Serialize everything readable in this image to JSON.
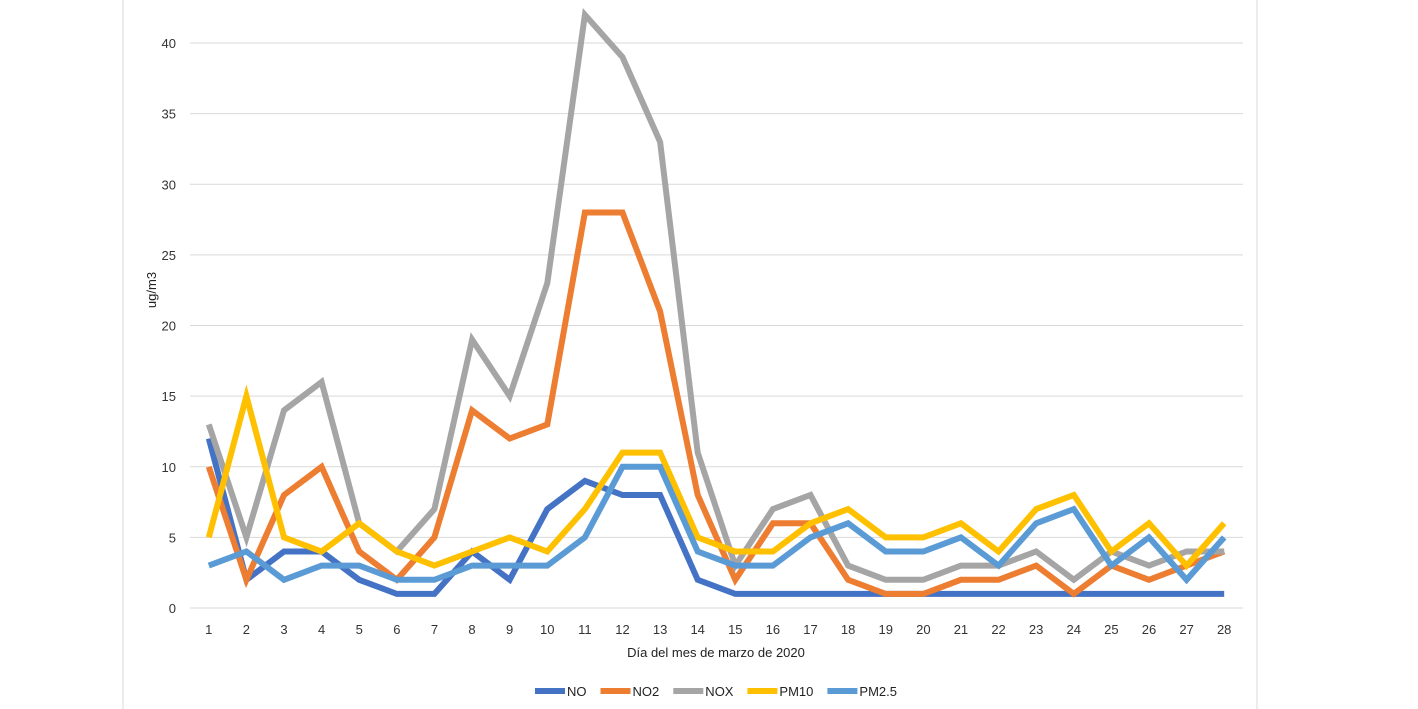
{
  "chart_data": {
    "type": "line",
    "title": "",
    "xlabel": "Día del mes de marzo de 2020",
    "ylabel": "ug/m3",
    "ylim": [
      0,
      42
    ],
    "yticks": [
      0,
      5,
      10,
      15,
      20,
      25,
      30,
      35,
      40
    ],
    "grid": true,
    "legend_position": "bottom",
    "categories": [
      "1",
      "2",
      "3",
      "4",
      "5",
      "6",
      "7",
      "8",
      "9",
      "10",
      "11",
      "12",
      "13",
      "14",
      "15",
      "16",
      "17",
      "18",
      "19",
      "20",
      "21",
      "22",
      "23",
      "24",
      "25",
      "26",
      "27",
      "28"
    ],
    "series": [
      {
        "name": "NO",
        "color": "#4472C4",
        "values": [
          12,
          2,
          4,
          4,
          2,
          1,
          1,
          4,
          2,
          7,
          9,
          8,
          8,
          2,
          1,
          1,
          1,
          1,
          1,
          1,
          1,
          1,
          1,
          1,
          1,
          1,
          1,
          1
        ]
      },
      {
        "name": "NO2",
        "color": "#ED7D31",
        "values": [
          10,
          2,
          8,
          10,
          4,
          2,
          5,
          14,
          12,
          13,
          28,
          28,
          21,
          8,
          2,
          6,
          6,
          2,
          1,
          1,
          2,
          2,
          3,
          1,
          3,
          2,
          3,
          4
        ]
      },
      {
        "name": "NOX",
        "color": "#A5A5A5",
        "values": [
          13,
          5,
          14,
          16,
          6,
          4,
          7,
          19,
          15,
          23,
          42,
          39,
          33,
          11,
          3,
          7,
          8,
          3,
          2,
          2,
          3,
          3,
          4,
          2,
          4,
          3,
          4,
          4
        ]
      },
      {
        "name": "PM10",
        "color": "#FFC000",
        "values": [
          5,
          15,
          5,
          4,
          6,
          4,
          3,
          4,
          5,
          4,
          7,
          11,
          11,
          5,
          4,
          4,
          6,
          7,
          5,
          5,
          6,
          4,
          7,
          8,
          4,
          6,
          3,
          6
        ]
      },
      {
        "name": "PM2.5",
        "color": "#5B9BD5",
        "values": [
          3,
          4,
          2,
          3,
          3,
          2,
          2,
          3,
          3,
          3,
          5,
          10,
          10,
          4,
          3,
          3,
          5,
          6,
          4,
          4,
          5,
          3,
          6,
          7,
          3,
          5,
          2,
          5
        ]
      }
    ]
  }
}
